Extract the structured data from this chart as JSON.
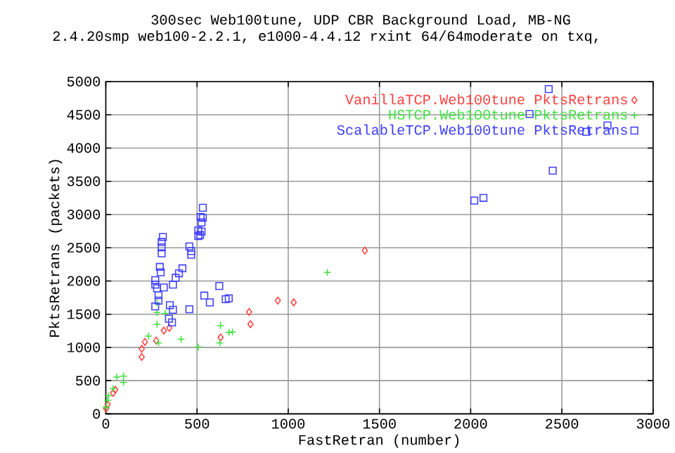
{
  "chart_data": {
    "type": "scatter",
    "title": "300sec Web100tune, UDP CBR Background Load, MB-NG",
    "subtitle": "2.4.20smp web100-2.2.1, e1000-4.4.12 rxint 64/64moderate on txq,",
    "xlabel": "FastRetran (number)",
    "ylabel": "PktsRetrans (packets)",
    "xlim": [
      0,
      3000
    ],
    "ylim": [
      0,
      5000
    ],
    "xticks": [
      0,
      500,
      1000,
      1500,
      2000,
      2500,
      3000
    ],
    "yticks": [
      0,
      500,
      1000,
      1500,
      2000,
      2500,
      3000,
      3500,
      4000,
      4500,
      5000
    ],
    "grid": true,
    "legend": "top right",
    "series": [
      {
        "name": "VanillaTCP.Web100tune PktsRetrans",
        "color": "#ff4040",
        "marker": "diamond",
        "x": [
          943,
          1030,
          786,
          793,
          629,
          348,
          318,
          276,
          214,
          197,
          197,
          52,
          40,
          10,
          2,
          1420
        ],
        "values": [
          1704,
          1677,
          1534,
          1349,
          1150,
          1294,
          1253,
          1103,
          1082,
          979,
          856,
          363,
          315,
          144,
          80,
          2457
        ]
      },
      {
        "name": "HSTCP.Web100tune PktsRetrans",
        "color": "#40e040",
        "marker": "cross",
        "x": [
          1214,
          629,
          694,
          675,
          625,
          507,
          413,
          289,
          234,
          281,
          281,
          326,
          281,
          97,
          97,
          60,
          40,
          15,
          2,
          10
        ],
        "values": [
          2129,
          1328,
          1232,
          1225,
          1068,
          1006,
          1123,
          1068,
          1170,
          1349,
          1526,
          1513,
          1669,
          568,
          472,
          554,
          380,
          274,
          103,
          205
        ]
      },
      {
        "name": "ScalableTCP.Web100tune PktsRetrans",
        "color": "#4040ff",
        "marker": "square",
        "x": [
          532,
          520,
          532,
          525,
          525,
          507,
          507,
          517,
          458,
          468,
          468,
          313,
          306,
          306,
          306,
          296,
          301,
          420,
          401,
          383,
          368,
          271,
          271,
          281,
          318,
          289,
          289,
          271,
          351,
          368,
          346,
          363,
          458,
          622,
          540,
          570,
          657,
          674,
          2428,
          2323,
          2634,
          2020,
          2070,
          2450,
          2750
        ],
        "values": [
          3101,
          2963,
          2950,
          2881,
          2745,
          2760,
          2676,
          2690,
          2519,
          2450,
          2395,
          2663,
          2587,
          2505,
          2416,
          2211,
          2129,
          2190,
          2115,
          2047,
          1944,
          2012,
          1944,
          1889,
          1903,
          1786,
          1704,
          1616,
          1636,
          1567,
          1431,
          1376,
          1575,
          1924,
          1780,
          1678,
          1725,
          1738,
          4887,
          4511,
          4244,
          3210,
          3250,
          3660,
          4340
        ]
      }
    ]
  }
}
